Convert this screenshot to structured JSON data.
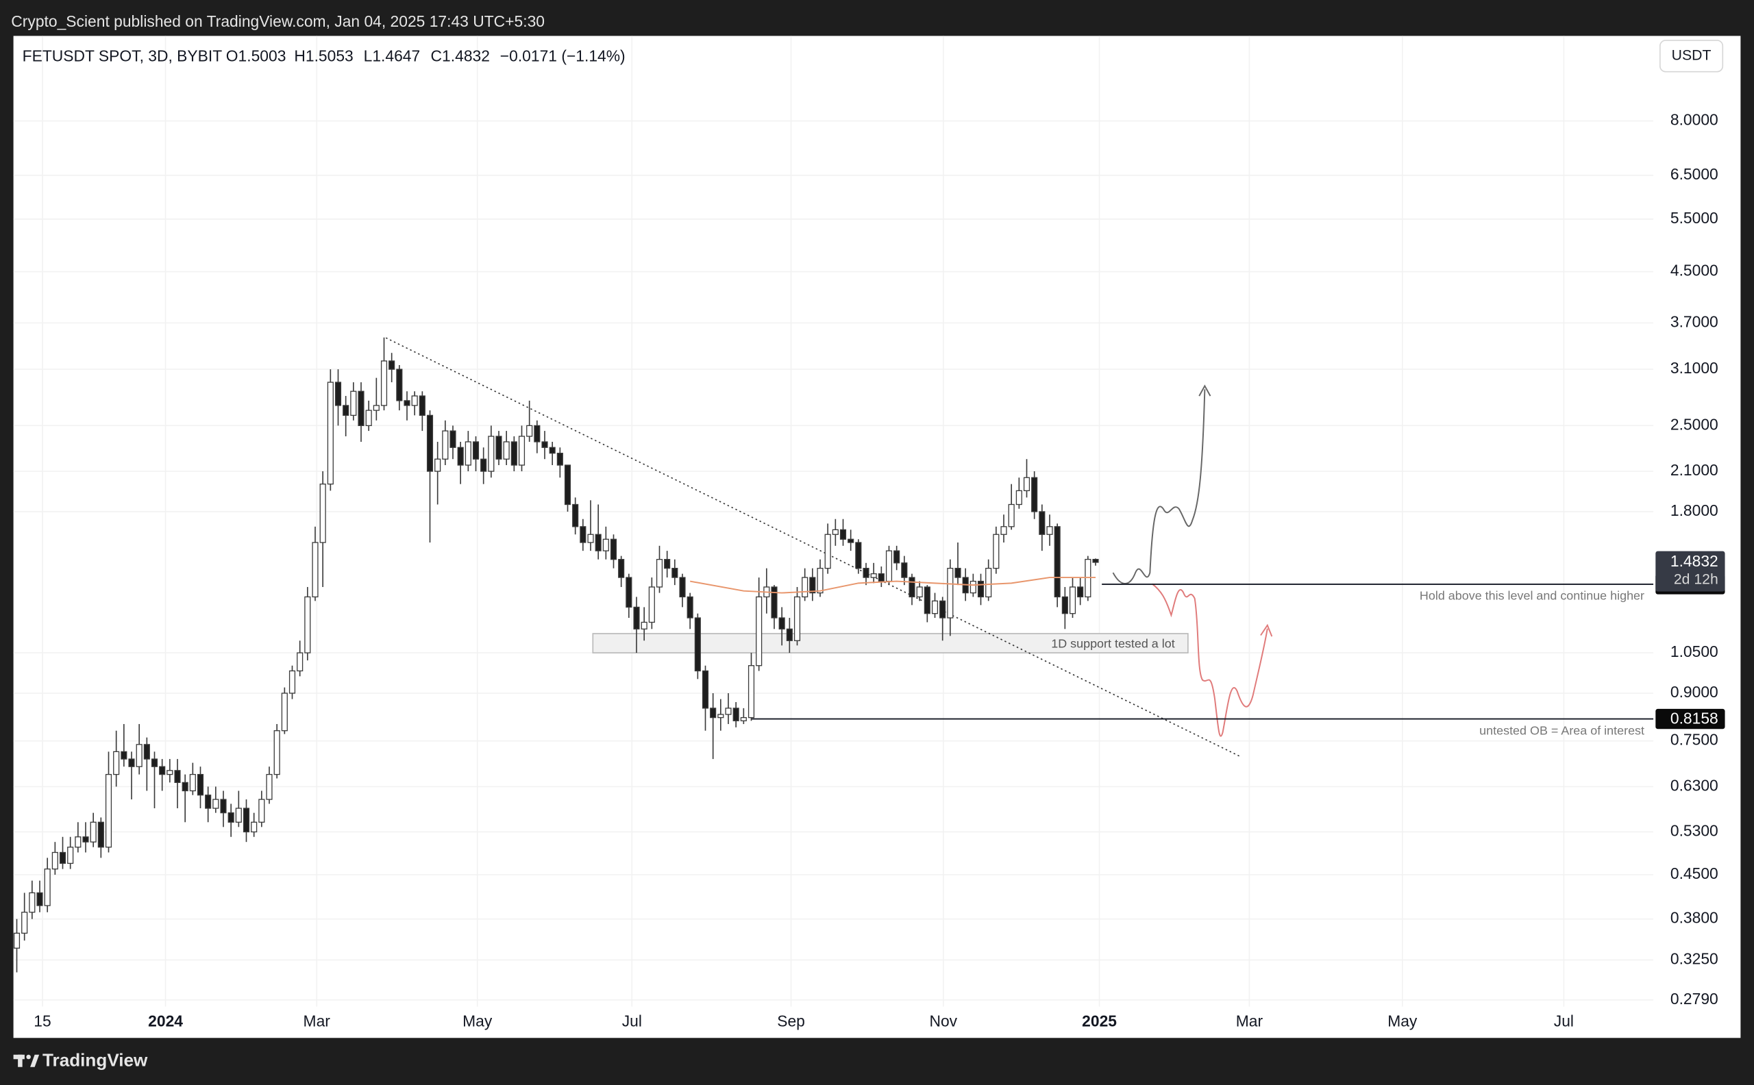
{
  "chart_data": {
    "type": "candlestick",
    "published": "Crypto_Scient published on TradingView.com, Jan 04, 2025 17:43 UTC+5:30",
    "symbol": "FETUSDT SPOT, 3D, BYBIT",
    "ohlc_labels": [
      "O1.5003",
      "H1.5053",
      "L1.4647",
      "C1.4832"
    ],
    "change": "−0.0171 (−1.14%)",
    "currency": "USDT",
    "footer": "TradingView",
    "log_scale": true,
    "grid": true,
    "up_color": "#ffffff",
    "down_color": "#1e1e1e",
    "open": [
      0.34,
      0.36,
      0.39,
      0.42,
      0.4,
      0.46,
      0.49,
      0.47,
      0.5,
      0.52,
      0.51,
      0.55,
      0.5,
      0.66,
      0.72,
      0.7,
      0.68,
      0.74,
      0.7,
      0.68,
      0.66,
      0.67,
      0.64,
      0.62,
      0.66,
      0.61,
      0.58,
      0.6,
      0.57,
      0.55,
      0.58,
      0.53,
      0.55,
      0.6,
      0.66,
      0.78,
      0.9,
      0.98,
      1.05,
      1.3,
      1.6,
      2.0,
      2.95,
      2.7,
      2.6,
      2.85,
      2.5,
      2.65,
      2.7,
      3.2,
      3.1,
      2.75,
      2.7,
      2.8,
      2.6,
      2.1,
      2.2,
      2.45,
      2.3,
      2.15,
      2.35,
      2.2,
      2.1,
      2.4,
      2.2,
      2.35,
      2.15,
      2.4,
      2.5,
      2.35,
      2.3,
      2.25,
      2.15,
      1.85,
      1.7,
      1.6,
      1.65,
      1.55,
      1.62,
      1.5,
      1.4,
      1.25,
      1.15,
      1.18,
      1.35,
      1.5,
      1.45,
      1.4,
      1.3,
      1.2,
      0.98,
      0.85,
      0.82,
      0.83,
      0.85,
      0.81,
      0.82,
      1.0,
      1.3,
      1.35,
      1.2,
      1.15,
      1.1,
      1.3,
      1.4,
      1.32,
      1.45,
      1.65,
      1.68,
      1.62,
      1.6,
      1.45,
      1.4,
      1.42,
      1.38,
      1.55,
      1.48,
      1.4,
      1.3,
      1.35,
      1.22,
      1.28,
      1.2,
      1.45,
      1.4,
      1.32,
      1.38,
      1.3,
      1.45,
      1.65,
      1.7,
      1.85,
      1.95,
      2.05,
      1.8,
      1.65,
      1.7,
      1.3,
      1.22,
      1.35,
      1.3,
      1.5003
    ],
    "high": [
      0.38,
      0.42,
      0.44,
      0.44,
      0.48,
      0.51,
      0.52,
      0.52,
      0.55,
      0.55,
      0.57,
      0.56,
      0.72,
      0.78,
      0.8,
      0.72,
      0.8,
      0.76,
      0.72,
      0.7,
      0.7,
      0.7,
      0.66,
      0.69,
      0.68,
      0.63,
      0.63,
      0.62,
      0.59,
      0.62,
      0.6,
      0.57,
      0.62,
      0.68,
      0.8,
      0.92,
      1.0,
      1.1,
      1.35,
      1.7,
      2.1,
      3.1,
      3.1,
      2.8,
      2.95,
      2.95,
      2.75,
      3.0,
      3.5,
      3.3,
      3.15,
      2.85,
      2.85,
      2.85,
      2.65,
      2.35,
      2.55,
      2.5,
      2.35,
      2.45,
      2.4,
      2.3,
      2.5,
      2.45,
      2.45,
      2.4,
      2.5,
      2.75,
      2.55,
      2.45,
      2.35,
      2.3,
      2.15,
      1.9,
      1.75,
      1.88,
      1.85,
      1.7,
      1.65,
      1.52,
      1.42,
      1.3,
      1.25,
      1.4,
      1.58,
      1.55,
      1.5,
      1.42,
      1.32,
      1.22,
      1.0,
      0.9,
      0.88,
      0.9,
      0.87,
      0.85,
      1.05,
      1.4,
      1.45,
      1.36,
      1.25,
      1.2,
      1.35,
      1.45,
      1.45,
      1.5,
      1.72,
      1.75,
      1.75,
      1.68,
      1.62,
      1.48,
      1.48,
      1.46,
      1.58,
      1.58,
      1.52,
      1.42,
      1.38,
      1.36,
      1.32,
      1.3,
      1.5,
      1.6,
      1.45,
      1.42,
      1.42,
      1.5,
      1.7,
      1.78,
      2.0,
      2.05,
      2.2,
      2.1,
      1.85,
      1.78,
      1.72,
      1.35,
      1.4,
      1.4,
      1.52,
      1.5053
    ],
    "low": [
      0.31,
      0.35,
      0.38,
      0.39,
      0.39,
      0.45,
      0.46,
      0.46,
      0.49,
      0.49,
      0.5,
      0.48,
      0.49,
      0.63,
      0.68,
      0.6,
      0.66,
      0.62,
      0.58,
      0.62,
      0.64,
      0.58,
      0.55,
      0.61,
      0.58,
      0.55,
      0.57,
      0.54,
      0.52,
      0.54,
      0.51,
      0.52,
      0.54,
      0.59,
      0.65,
      0.77,
      0.88,
      0.96,
      1.02,
      1.28,
      1.35,
      1.95,
      2.5,
      2.4,
      2.55,
      2.35,
      2.45,
      2.55,
      2.65,
      2.95,
      2.65,
      2.55,
      2.6,
      2.45,
      1.6,
      1.85,
      2.15,
      2.2,
      2.0,
      2.1,
      2.1,
      2.0,
      2.05,
      2.15,
      2.15,
      2.1,
      2.1,
      2.35,
      2.25,
      2.2,
      2.15,
      2.05,
      1.8,
      1.65,
      1.55,
      1.55,
      1.5,
      1.5,
      1.45,
      1.35,
      1.2,
      1.05,
      1.1,
      1.15,
      1.32,
      1.4,
      1.36,
      1.25,
      1.15,
      0.95,
      0.78,
      0.7,
      0.78,
      0.8,
      0.79,
      0.8,
      0.81,
      0.98,
      1.22,
      1.15,
      1.08,
      1.05,
      1.08,
      1.28,
      1.28,
      1.3,
      1.42,
      1.58,
      1.58,
      1.55,
      1.42,
      1.36,
      1.37,
      1.35,
      1.36,
      1.44,
      1.36,
      1.26,
      1.28,
      1.18,
      1.2,
      1.1,
      1.12,
      1.36,
      1.28,
      1.3,
      1.26,
      1.28,
      1.42,
      1.6,
      1.68,
      1.82,
      1.9,
      1.75,
      1.55,
      1.58,
      1.25,
      1.15,
      1.2,
      1.26,
      1.28,
      1.4647
    ],
    "close": [
      0.36,
      0.39,
      0.42,
      0.4,
      0.46,
      0.49,
      0.47,
      0.5,
      0.52,
      0.51,
      0.55,
      0.5,
      0.66,
      0.72,
      0.7,
      0.68,
      0.74,
      0.7,
      0.68,
      0.66,
      0.67,
      0.64,
      0.62,
      0.66,
      0.61,
      0.58,
      0.6,
      0.57,
      0.55,
      0.58,
      0.53,
      0.55,
      0.6,
      0.66,
      0.78,
      0.9,
      0.98,
      1.05,
      1.3,
      1.6,
      2.0,
      2.95,
      2.7,
      2.6,
      2.85,
      2.5,
      2.65,
      2.7,
      3.2,
      3.1,
      2.75,
      2.7,
      2.8,
      2.6,
      2.1,
      2.2,
      2.45,
      2.3,
      2.15,
      2.35,
      2.2,
      2.1,
      2.4,
      2.2,
      2.35,
      2.15,
      2.4,
      2.5,
      2.35,
      2.3,
      2.25,
      2.15,
      1.85,
      1.7,
      1.6,
      1.65,
      1.55,
      1.62,
      1.5,
      1.4,
      1.25,
      1.15,
      1.18,
      1.35,
      1.5,
      1.45,
      1.4,
      1.3,
      1.2,
      0.98,
      0.85,
      0.82,
      0.83,
      0.85,
      0.81,
      0.82,
      1.0,
      1.3,
      1.35,
      1.2,
      1.15,
      1.1,
      1.3,
      1.4,
      1.32,
      1.45,
      1.65,
      1.68,
      1.62,
      1.6,
      1.45,
      1.4,
      1.42,
      1.38,
      1.55,
      1.48,
      1.4,
      1.3,
      1.35,
      1.22,
      1.28,
      1.2,
      1.45,
      1.4,
      1.32,
      1.38,
      1.3,
      1.45,
      1.65,
      1.7,
      1.85,
      1.95,
      2.05,
      1.8,
      1.65,
      1.7,
      1.3,
      1.22,
      1.35,
      1.3,
      1.5003,
      1.4832
    ],
    "ma": {
      "color": "#e8956b",
      "x": [
        88,
        95,
        100,
        105,
        110,
        115,
        120,
        125,
        130,
        135,
        141
      ],
      "values": [
        1.38,
        1.33,
        1.32,
        1.33,
        1.37,
        1.38,
        1.37,
        1.36,
        1.37,
        1.4,
        1.4
      ]
    },
    "xlim": [
      -0.44,
      213.9
    ],
    "xticks": [
      {
        "value": 3.36,
        "label": "15"
      },
      {
        "value": 19.44,
        "label": "2024"
      },
      {
        "value": 39.2,
        "label": "Mar"
      },
      {
        "value": 60.2,
        "label": "May"
      },
      {
        "value": 80.4,
        "label": "Jul"
      },
      {
        "value": 101.2,
        "label": "Sep"
      },
      {
        "value": 121.1,
        "label": "Nov"
      },
      {
        "value": 141.5,
        "label": "2025"
      },
      {
        "value": 161.1,
        "label": "Mar"
      },
      {
        "value": 181.1,
        "label": "May"
      },
      {
        "value": 202.2,
        "label": "Jul"
      }
    ],
    "ylim": [
      0.272,
      11.07
    ],
    "yticks": [
      {
        "value": 8,
        "label": "8.0000"
      },
      {
        "value": 6.5,
        "label": "6.5000"
      },
      {
        "value": 5.5,
        "label": "5.5000"
      },
      {
        "value": 4.5,
        "label": "4.5000"
      },
      {
        "value": 3.7,
        "label": "3.7000"
      },
      {
        "value": 3.1,
        "label": "3.1000"
      },
      {
        "value": 2.5,
        "label": "2.5000"
      },
      {
        "value": 2.1,
        "label": "2.1000"
      },
      {
        "value": 1.8,
        "label": "1.8000"
      },
      {
        "value": 1.05,
        "label": "1.0500"
      },
      {
        "value": 0.9,
        "label": "0.9000"
      },
      {
        "value": 0.75,
        "label": "0.7500"
      },
      {
        "value": 0.63,
        "label": "0.6300"
      },
      {
        "value": 0.53,
        "label": "0.5300"
      },
      {
        "value": 0.45,
        "label": "0.4500"
      },
      {
        "value": 0.38,
        "label": "0.3800"
      },
      {
        "value": 0.325,
        "label": "0.3250"
      },
      {
        "value": 0.279,
        "label": "0.2790"
      }
    ],
    "last_price": 1.4832,
    "countdown": "2d 12h",
    "levels": [
      {
        "value": 1.3643,
        "note": "Hold above this level and continue higher"
      },
      {
        "value": 0.8158,
        "note": "untested OB = Area of interest"
      }
    ],
    "support_zone": {
      "range": [
        1.05,
        1.13
      ],
      "label": "1D support tested a lot"
    }
  }
}
